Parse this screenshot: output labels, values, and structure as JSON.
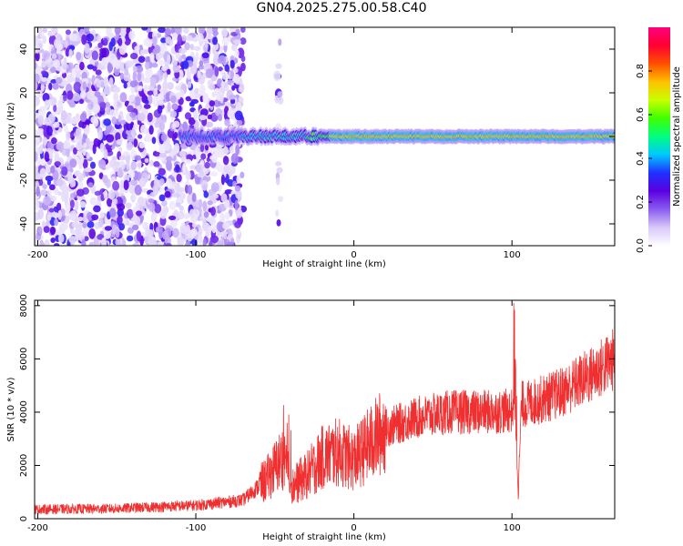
{
  "title": "GN04.2025.275.00.58.C40",
  "chart_data": [
    {
      "type": "heatmap",
      "xlabel": "Height of straight line (km)",
      "ylabel": "Frequency (Hz)",
      "xlim": [
        -202,
        165
      ],
      "ylim": [
        -50,
        50
      ],
      "xticks": [
        -200,
        -100,
        0,
        100
      ],
      "yticks": [
        -40,
        -20,
        0,
        20,
        40
      ],
      "colorbar": {
        "label": "Normalized spectral amplitude",
        "range": [
          0,
          1
        ],
        "ticks": [
          0.0,
          0.2,
          0.4,
          0.6,
          0.8
        ],
        "colors": [
          "#ffffff",
          "#d8c8f8",
          "#8a5cf0",
          "#5a00e0",
          "#2030ff",
          "#00c8ff",
          "#00ff80",
          "#40ff00",
          "#c8ff00",
          "#ffc000",
          "#ff5000",
          "#ff0030",
          "#ff0080"
        ]
      },
      "regions": [
        {
          "name": "scattered noise",
          "x": [
            -202,
            -70
          ],
          "freq_range": [
            -50,
            50
          ],
          "amplitude": 0.1
        },
        {
          "name": "narrow strip",
          "x": [
            -49,
            -46
          ],
          "freq_range": [
            -50,
            50
          ],
          "amplitude": 0.1
        },
        {
          "name": "main band",
          "x": [
            -110,
            165
          ],
          "center_freq_hz": 0,
          "bandwidth_hz": 6,
          "amplitude": 0.8
        }
      ]
    },
    {
      "type": "line",
      "xlabel": "Height of straight line (km)",
      "ylabel": "SNR (10 * v/v)",
      "xlim": [
        -202,
        165
      ],
      "ylim": [
        0,
        8200
      ],
      "xticks": [
        -200,
        -100,
        0,
        100
      ],
      "yticks": [
        0,
        2000,
        4000,
        6000,
        8000
      ],
      "color": "#f03030",
      "trend": {
        "x": [
          -202,
          -150,
          -100,
          -70,
          -55,
          -45,
          -40,
          -30,
          -20,
          -10,
          0,
          10,
          20,
          40,
          60,
          80,
          100,
          102,
          104,
          106,
          110,
          130,
          150,
          165
        ],
        "y": [
          350,
          380,
          500,
          700,
          1500,
          2300,
          1200,
          1600,
          2300,
          2500,
          2200,
          2800,
          3400,
          3800,
          4000,
          4000,
          4050,
          4500,
          1000,
          4300,
          4300,
          4700,
          5400,
          6000
        ]
      }
    }
  ]
}
